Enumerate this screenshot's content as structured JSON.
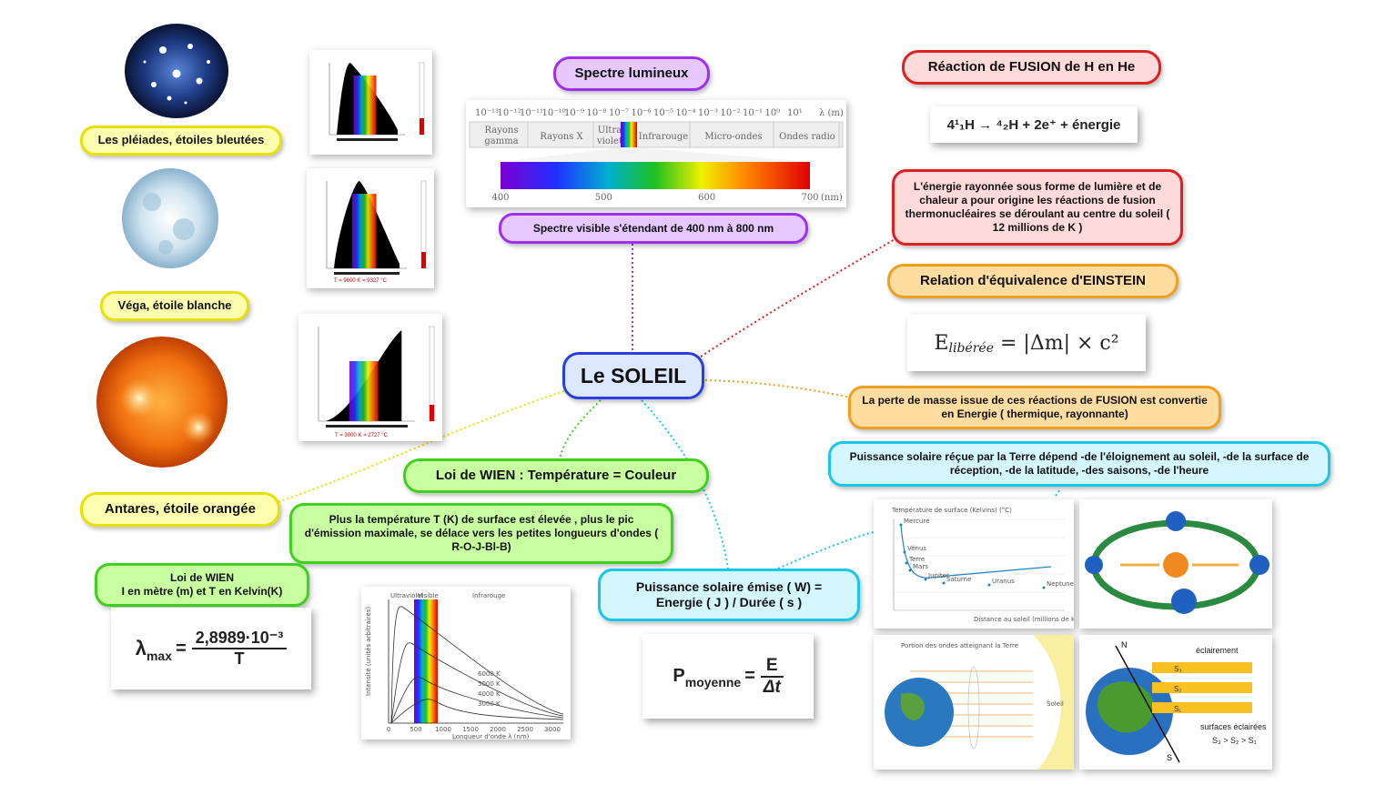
{
  "center": {
    "title": "Le SOLEIL"
  },
  "stars": {
    "pleiades": "Les pléiades, étoiles bleutées",
    "vega": "Véga, étoile blanche",
    "antares": "Antares, étoile orangée",
    "vega_caption": "T = 9600 K = 9327 °C",
    "antares_caption": "T = 3000 K = 2727 °C"
  },
  "spectrum": {
    "title": "Spectre lumineux",
    "visible": "Spectre visible s'étendant de 400 nm à 800 nm",
    "exponents": [
      "10⁻¹³",
      "10⁻¹²",
      "10⁻¹¹",
      "10⁻¹⁰",
      "10⁻⁹",
      "10⁻⁸",
      "10⁻⁷",
      "10⁻⁶",
      "10⁻⁵",
      "10⁻⁴",
      "10⁻³",
      "10⁻²",
      "10⁻¹",
      "10⁰",
      "10¹"
    ],
    "unit": "λ (m)",
    "bands": [
      "Rayons gamma",
      "Rayons X",
      "Ultra violet",
      "Infrarouge",
      "Micro-ondes",
      "Ondes radio"
    ],
    "nm_ticks": [
      "400",
      "500",
      "600",
      "700"
    ],
    "nm_unit": "(nm)"
  },
  "fusion": {
    "title": "Réaction de FUSION de H en He",
    "equation": "4¹₁H → ⁴₂H + 2e⁺ + énergie",
    "origin": "L'énergie rayonnée sous forme de lumière et de chaleur a pour origine les réactions de fusion thermonucléaires se déroulant au centre du soleil ( 12 millions de K )"
  },
  "einstein": {
    "title": "Relation d'équivalence d'EINSTEIN",
    "formula_E": "E",
    "formula_sub": "libérée",
    "formula_rest": " = |Δm| × c²",
    "mass_loss": "La perte de masse issue de ces réactions de FUSION est convertie en Energie ( thermique, rayonnante)"
  },
  "wien": {
    "title": "Loi de WIEN : Température = Couleur",
    "description": "Plus la température T (K) de surface est élevée , plus le pic d'émission maximale, se délace vers les petites longueurs d'ondes ( R-O-J-Bl-B)",
    "units": "Loi de WIEN\nI en mètre (m) et T en Kelvin(K)",
    "lambda": "λ",
    "lambda_sub": "max",
    "numerator": "2,8989·10⁻³",
    "denominator": "T",
    "chart_labels": [
      "Ultraviolet",
      "Visible",
      "Infrarouge"
    ],
    "curve_labels": [
      "6000 K",
      "5000 K",
      "4000 K",
      "3000 K"
    ],
    "x_ticks": [
      "0",
      "500",
      "1000",
      "1500",
      "2000",
      "2500",
      "3000"
    ],
    "x_label": "Longueur d'onde λ (nm)",
    "y_label": "Intensité (unités arbitraires)"
  },
  "power": {
    "emitted": "Puissance solaire émise ( W)  =\nEnergie ( J ) / Durée ( s )",
    "P": "P",
    "P_sub": "moyenne",
    "num": "E",
    "den": "Δt",
    "received": "Puissance solaire réçue par la Terre dépend -de l'éloignement au soleil, -de la surface de réception, -de la latitude, -des saisons, -de l'heure"
  },
  "earth": {
    "eclairement": "éclairement",
    "surfaces": "surfaces éclairées",
    "relation": "S₃ > S₂ > S₁",
    "N": "N",
    "S": "S",
    "s_labels": [
      "S₃",
      "S₂",
      "S₁"
    ],
    "chart_title": "Température de surface (Kelvins) (°C)",
    "x_label": "Distance au soleil (millions de km)",
    "planets": [
      "Mercure",
      "Vénus",
      "Terre",
      "Mars",
      "Jupiter",
      "Saturne",
      "Uranus",
      "Neptune"
    ],
    "rays_title": "Portion des ondes atteignant la Terre",
    "soleil": "Soleil"
  },
  "colors": {
    "purple": "#a030f0",
    "red": "#e02020",
    "orange": "#f0a020",
    "green": "#40d020",
    "cyan": "#18c8ea",
    "yellow": "#e8e000",
    "blue": "#2a3fe0"
  }
}
